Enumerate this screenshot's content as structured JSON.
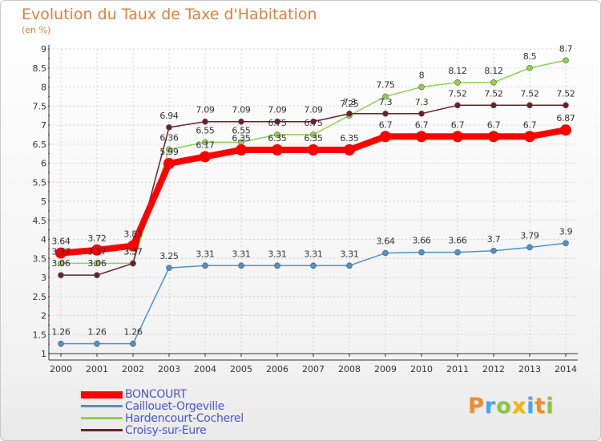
{
  "chart_data": {
    "type": "line",
    "title": "Evolution du Taux de Taxe d'Habitation",
    "subtitle": "(en %)",
    "categories": [
      "2000",
      "2001",
      "2002",
      "2003",
      "2004",
      "2005",
      "2006",
      "2007",
      "2008",
      "2009",
      "2010",
      "2011",
      "2012",
      "2013",
      "2014"
    ],
    "ylim": [
      1,
      9
    ],
    "yticks": [
      "1",
      "1.5",
      "2",
      "2.5",
      "3",
      "3.5",
      "4",
      "4.5",
      "5",
      "5.5",
      "6",
      "6.5",
      "7",
      "7.5",
      "8",
      "8.5",
      "9"
    ],
    "grid": true,
    "legend_position": "bottom-left",
    "series": [
      {
        "name": "BONCOURT",
        "color": "#ff0000",
        "emphasis": true,
        "values": [
          3.64,
          3.72,
          3.83,
          5.99,
          6.17,
          6.35,
          6.35,
          6.35,
          6.35,
          6.7,
          6.7,
          6.7,
          6.7,
          6.7,
          6.87
        ],
        "labels": [
          "3.64",
          "3.72",
          "3.83",
          "5.99",
          "6.17",
          "6.35",
          "6.35",
          "6.35",
          "6.35",
          "6.7",
          "6.7",
          "6.7",
          "6.7",
          "6.7",
          "6.87"
        ]
      },
      {
        "name": "Caillouet-Orgeville",
        "color": "#4d92cc",
        "emphasis": false,
        "values": [
          1.26,
          1.26,
          1.26,
          3.25,
          3.31,
          3.31,
          3.31,
          3.31,
          3.31,
          3.64,
          3.66,
          3.66,
          3.7,
          3.79,
          3.9
        ],
        "labels": [
          "1.26",
          "1.26",
          "1.26",
          "3.25",
          "3.31",
          "3.31",
          "3.31",
          "3.31",
          "3.31",
          "3.64",
          "3.66",
          "3.66",
          "3.7",
          "3.79",
          "3.9"
        ]
      },
      {
        "name": "Hardencourt-Cocherel",
        "color": "#8fd14f",
        "emphasis": false,
        "values": [
          3.37,
          3.37,
          3.37,
          6.36,
          6.55,
          6.55,
          6.75,
          6.75,
          7.25,
          7.75,
          8,
          8.12,
          8.12,
          8.5,
          8.7
        ],
        "labels": [
          "3.37",
          "3.37",
          "3.37",
          "6.36",
          "6.55",
          "6.55",
          "6.75",
          "6.75",
          "7.25",
          "7.75",
          "8",
          "8.12",
          "8.12",
          "8.5",
          "8.7"
        ]
      },
      {
        "name": "Croisy-sur-Eure",
        "color": "#6e1f2a",
        "emphasis": false,
        "values": [
          3.06,
          3.06,
          3.37,
          6.94,
          7.09,
          7.09,
          7.09,
          7.09,
          7.3,
          7.3,
          7.3,
          7.52,
          7.52,
          7.52,
          7.52
        ],
        "labels": [
          "3.06",
          "3.06",
          "3.37",
          "6.94",
          "7.09",
          "7.09",
          "7.09",
          "7.09",
          "7.3",
          "7.3",
          "7.3",
          "7.52",
          "7.52",
          "7.52",
          "7.52"
        ]
      }
    ]
  },
  "logo": {
    "letters": [
      "P",
      "r",
      "o",
      "x",
      "i",
      "t",
      "i"
    ],
    "colors": [
      "#f28c28",
      "#3fa9f5",
      "#8dc63f",
      "#f7b500",
      "#3fa9f5",
      "#f28c28",
      "#8dc63f"
    ]
  }
}
